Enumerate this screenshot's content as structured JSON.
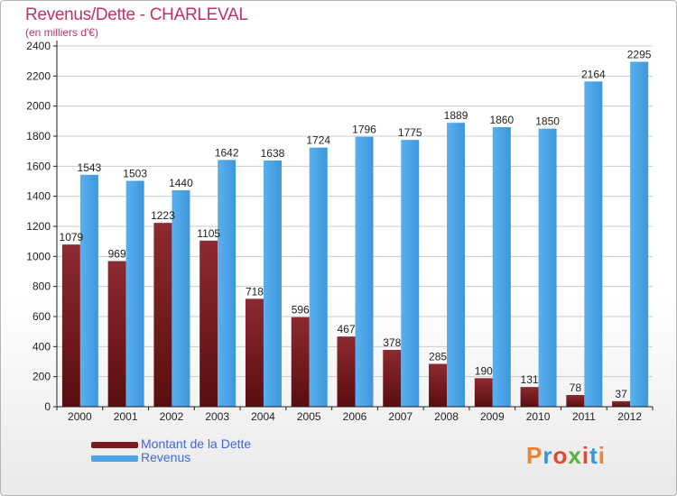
{
  "title": "Revenus/Dette - CHARLEVAL",
  "subtitle": "(en milliers d'€)",
  "logo": {
    "text": "Proxiti",
    "colors": [
      "#e8862e",
      "#3a95d8",
      "#e04b2f",
      "#58b235",
      "#e04b2f",
      "#3a95d8",
      "#e8862e"
    ]
  },
  "legend": [
    {
      "label": "Montant de la Dette",
      "color": "#7a1a1f"
    },
    {
      "label": "Revenus",
      "color": "#4aa3e6"
    }
  ],
  "colors": {
    "dette": "#7a1a1f",
    "revenus": "#4aa3e6",
    "axis": "#222222",
    "grid": "#cccccc"
  },
  "chart_data": {
    "type": "bar",
    "categories": [
      "2000",
      "2001",
      "2002",
      "2003",
      "2004",
      "2005",
      "2006",
      "2007",
      "2008",
      "2009",
      "2010",
      "2011",
      "2012"
    ],
    "series": [
      {
        "name": "Montant de la Dette",
        "values": [
          1079,
          969,
          1223,
          1105,
          718,
          596,
          467,
          378,
          285,
          190,
          131,
          78,
          37
        ],
        "labels": [
          "1079",
          "969",
          "1223",
          "1105",
          "718",
          "596",
          "467",
          "378",
          "285",
          "190",
          "131",
          "78",
          "37"
        ]
      },
      {
        "name": "Revenus",
        "values": [
          1543,
          1503,
          1440,
          1642,
          1638,
          1724,
          1796,
          1775,
          1889,
          1860,
          1850,
          2164,
          2295
        ],
        "labels": [
          "1543",
          "1503",
          "1440",
          "1642",
          "1638",
          "1724",
          "1796",
          "1775",
          "1889",
          "1860",
          "1850",
          "2164",
          "2295"
        ]
      }
    ],
    "yticks": [
      "0",
      "200",
      "400",
      "600",
      "800",
      "1000",
      "1200",
      "1400",
      "1600",
      "1800",
      "2000",
      "2200",
      "2400"
    ],
    "ylim": [
      0,
      2400
    ],
    "grid": true,
    "legend_position": "bottom-left",
    "title": "Revenus/Dette - CHARLEVAL",
    "ylabel": "(en milliers d'€)"
  }
}
